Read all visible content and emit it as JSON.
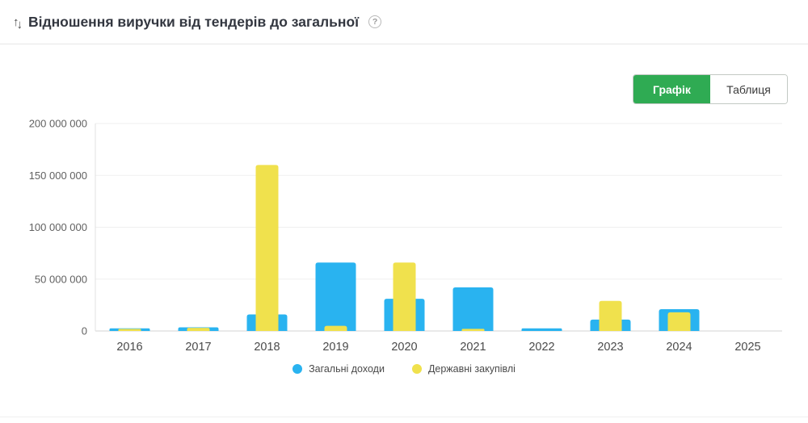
{
  "header": {
    "title": "Відношення виручки від тендерів до загальної",
    "sort_icon_up": "↑",
    "sort_icon_down": "↓",
    "help_icon": "?"
  },
  "toolbar": {
    "chart_tab_label": "Графік",
    "table_tab_label": "Таблиця"
  },
  "colors": {
    "accent_green": "#2FAB53",
    "series_blue": "#29B3F0",
    "series_yellow": "#F0E14D",
    "gridline": "#efefef",
    "axis_line": "#e2e2e2",
    "tick_text": "#616161",
    "category_text": "#4a4a4a"
  },
  "chart_data": {
    "type": "bar",
    "title": "Відношення виручки від тендерів до загальної",
    "categories": [
      "2016",
      "2017",
      "2018",
      "2019",
      "2020",
      "2021",
      "2022",
      "2023",
      "2024",
      "2025"
    ],
    "series": [
      {
        "name": "Загальні доходи",
        "color": "#29B3F0",
        "values": [
          2500000,
          3500000,
          16000000,
          66000000,
          31000000,
          42000000,
          2500000,
          11000000,
          21000000,
          0
        ]
      },
      {
        "name": "Державні закупівлі",
        "color": "#F0E14D",
        "values": [
          2000000,
          3000000,
          160000000,
          5000000,
          66000000,
          2000000,
          0,
          29000000,
          18000000,
          0
        ]
      }
    ],
    "ylim": [
      0,
      200000000
    ],
    "y_ticks": [
      0,
      50000000,
      100000000,
      150000000,
      200000000
    ],
    "grid": true,
    "legend_position": "bottom",
    "xlabel": "",
    "ylabel": ""
  }
}
